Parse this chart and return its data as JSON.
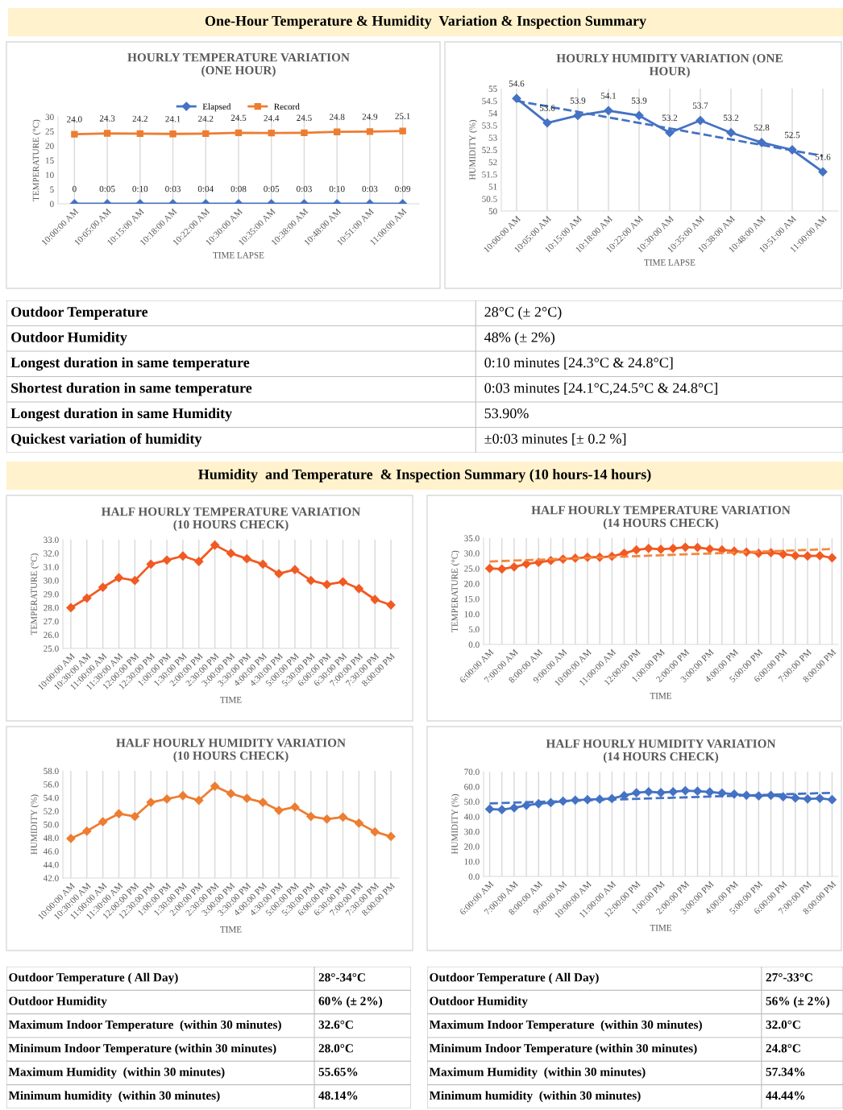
{
  "chart_data": [
    {
      "type": "other",
      "title": "One-Hour Temperature & Humidity  Variation & Inspection Summary"
    },
    {
      "type": "line",
      "title": "HOURLY TEMPERATURE VARIATION\n(ONE HOUR)",
      "xlabel": "TIME LAPSE",
      "ylabel": "TEMPERATURE (°C)",
      "categories": [
        "10:00:00 AM",
        "10:05:00 AM",
        "10:15:00 AM",
        "10:18:00 AM",
        "10:22:00 AM",
        "10:30:00 AM",
        "10:35:00 AM",
        "10:38:00 AM",
        "10:48:00 AM",
        "10:51:00 AM",
        "11:00:00 AM"
      ],
      "ylim": [
        0,
        30
      ],
      "yticks": [
        0,
        5,
        10,
        15,
        20,
        25,
        30
      ],
      "grid": "x",
      "legend": "top",
      "annotations": [
        {
          "text": "0:05",
          "x": "10:05:00 AM",
          "y": 0
        },
        {
          "text": "0:10",
          "x": "10:15:00 AM",
          "y": 0
        },
        {
          "text": "0:03",
          "x": "10:18:00 AM",
          "y": 0
        },
        {
          "text": "0:04",
          "x": "10:22:00 AM",
          "y": 0
        },
        {
          "text": "0:08",
          "x": "10:30:00 AM",
          "y": 0
        },
        {
          "text": "0:05",
          "x": "10:35:00 AM",
          "y": 0
        },
        {
          "text": "0:03",
          "x": "10:38:00 AM",
          "y": 0
        },
        {
          "text": "0:10",
          "x": "10:48:00 AM",
          "y": 0
        },
        {
          "text": "0:03",
          "x": "10:51:00 AM",
          "y": 0
        },
        {
          "text": "0:09",
          "x": "11:00:00 AM",
          "y": 0
        }
      ],
      "series": [
        {
          "name": "Elapsed",
          "color": "#4472c4",
          "marker": "diamond",
          "values": [
            0,
            0,
            0,
            0,
            0,
            0,
            0,
            0,
            0,
            0,
            0
          ],
          "value_labels": [
            "0",
            null,
            null,
            null,
            null,
            null,
            null,
            null,
            null,
            null,
            null
          ]
        },
        {
          "name": "Record",
          "color": "#ed7d31",
          "marker": "square",
          "values": [
            24.0,
            24.3,
            24.2,
            24.1,
            24.2,
            24.5,
            24.4,
            24.5,
            24.8,
            24.9,
            25.1
          ],
          "value_labels": [
            "24.0",
            "24.3",
            "24.2",
            "24.1",
            "24.2",
            "24.5",
            "24.4",
            "24.5",
            "24.8",
            "24.9",
            "25.1"
          ]
        }
      ]
    },
    {
      "type": "line",
      "title": "HOURLY HUMIDITY VARIATION (ONE\nHOUR)",
      "xlabel": "TIME LAPSE",
      "ylabel": "HUMIDITY (%)",
      "categories": [
        "10:00:00 AM",
        "10:05:00 AM",
        "10:15:00 AM",
        "10:18:00 AM",
        "10:22:00 AM",
        "10:30:00 AM",
        "10:35:00 AM",
        "10:38:00 AM",
        "10:48:00 AM",
        "10:51:00 AM",
        "11:00:00 AM"
      ],
      "ylim": [
        50,
        55
      ],
      "yticks": [
        50,
        50.5,
        51,
        51.5,
        52,
        52.5,
        53,
        53.5,
        54,
        54.5,
        55
      ],
      "grid": "x",
      "marker": "diamond",
      "series": [
        {
          "color": "#4472c4",
          "values": [
            54.6,
            53.6,
            53.9,
            54.1,
            53.9,
            53.2,
            53.7,
            53.2,
            52.8,
            52.5,
            51.6
          ],
          "value_labels": [
            "54.6",
            "53.6",
            "53.9",
            "54.1",
            "53.9",
            "53.2",
            "53.7",
            "53.2",
            "52.8",
            "52.5",
            "51.6"
          ]
        },
        {
          "type": "line",
          "color": "#4472c4",
          "marker": "none",
          "line_style": "dashed",
          "x": [
            "10:00:00 AM",
            "11:00:00 AM"
          ],
          "values": [
            54.5,
            52.25
          ]
        }
      ]
    },
    {
      "type": "other",
      "annotations": [
        "Outdoor Temperature",
        "28°C (± 2°C)",
        "Outdoor Humidity",
        "48% (± 2%)",
        "Longest duration in same temperature",
        "0:10 minutes [24.3°C & 24.8°C]",
        "Shortest duration in same temperature",
        "0:03 minutes [24.1°C,24.5°C & 24.8°C]",
        "Longest duration in same Humidity",
        "53.90%",
        "Quickest variation of humidity",
        "±0:03 minutes [± 0.2 %]"
      ]
    },
    {
      "type": "other",
      "title": "Humidity  and Temperature  & Inspection Summary (10 hours-14 hours)"
    },
    {
      "type": "line",
      "title": "HALF HOURLY TEMPERATURE VARIATION\n(10 HOURS CHECK)",
      "xlabel": "TIME",
      "ylabel": "TEMPERATURE (°C)",
      "categories": [
        "10:00:00 AM",
        "10:30:00 AM",
        "11:00:00 AM",
        "11:30:00 AM",
        "12:00:00 PM",
        "12:30:00 PM",
        "1:00:00 PM",
        "1:30:00 PM",
        "2:00:00 PM",
        "2:30:00 PM",
        "3:00:00 PM",
        "3:30:00 PM",
        "4:00:00 PM",
        "4:30:00 PM",
        "5:00:00 PM",
        "5:30:00 PM",
        "6:00:00 PM",
        "6:30:00 PM",
        "7:00:00 PM",
        "7:30:00 PM",
        "8:00:00 PM"
      ],
      "ylim": [
        25,
        33
      ],
      "yticks": [
        {
          "value": 25,
          "label": "25.0"
        },
        {
          "value": 26,
          "label": "26.0"
        },
        {
          "value": 27,
          "label": "27.0"
        },
        {
          "value": 28,
          "label": "28.0"
        },
        {
          "value": 29,
          "label": "29.0"
        },
        {
          "value": 30,
          "label": "30.0"
        },
        {
          "value": 31,
          "label": "31.0"
        },
        {
          "value": 32,
          "label": "32.0"
        },
        {
          "value": 33,
          "label": "33.0"
        }
      ],
      "grid": "x",
      "marker": "diamond",
      "series": [
        {
          "color": "#f15a22",
          "values": [
            28.0,
            28.7,
            29.5,
            30.2,
            30.0,
            31.2,
            31.5,
            31.8,
            31.4,
            32.6,
            32.0,
            31.6,
            31.2,
            30.5,
            30.8,
            30.0,
            29.7,
            29.9,
            29.4,
            28.6,
            28.2
          ]
        }
      ]
    },
    {
      "type": "line",
      "title": "HALF HOURLY TEMPERATURE VARIATION\n(14 HOURS CHECK)",
      "xlabel": "TIME",
      "ylabel": "TEMPERATURE (°C)",
      "categories": [
        "6:00:00 AM",
        null,
        "7:00:00 AM",
        null,
        "8:00:00 AM",
        null,
        "9:00:00 AM",
        null,
        "10:00:00 AM",
        null,
        "11:00:00 AM",
        null,
        "12:00:00 PM",
        null,
        "1:00:00 PM",
        null,
        "2:00:00 PM",
        null,
        "3:00:00 PM",
        null,
        "4:00:00 PM",
        null,
        "5:00:00 PM",
        null,
        "6:00:00 PM",
        null,
        "7:00:00 PM",
        null,
        "8:00:00 PM"
      ],
      "ylim": [
        0,
        35
      ],
      "yticks": [
        {
          "value": 0,
          "label": "0.0"
        },
        {
          "value": 5,
          "label": "5.0"
        },
        {
          "value": 10,
          "label": "10.0"
        },
        {
          "value": 15,
          "label": "15.0"
        },
        {
          "value": 20,
          "label": "20.0"
        },
        {
          "value": 25,
          "label": "25.0"
        },
        {
          "value": 30,
          "label": "30.0"
        },
        {
          "value": 35,
          "label": "35.0"
        }
      ],
      "grid": "x",
      "marker": "diamond",
      "series": [
        {
          "color": "#f15a22",
          "values": [
            25.0,
            24.8,
            25.5,
            26.5,
            27.0,
            27.6,
            28.1,
            28.4,
            28.7,
            28.7,
            29.0,
            30.0,
            31.1,
            31.6,
            31.3,
            31.6,
            32.0,
            31.9,
            31.4,
            31.1,
            30.7,
            30.4,
            30.0,
            30.2,
            29.7,
            29.2,
            29.1,
            29.2,
            28.5
          ]
        },
        {
          "type": "line",
          "color": "#f4873e",
          "marker": "none",
          "line_style": "dashed",
          "x": [
            "6:00:00 AM",
            "8:00:00 PM"
          ],
          "values": [
            27.3,
            31.4
          ]
        }
      ]
    },
    {
      "type": "line",
      "title": "HALF HOURLY HUMIDITY VARIATION\n(10 HOURS CHECK)",
      "xlabel": "TIME",
      "ylabel": "HUMIDITY (%)",
      "categories": [
        "10:00:00 AM",
        "10:30:00 AM",
        "11:00:00 AM",
        "11:30:00 AM",
        "12:00:00 PM",
        "12:30:00 PM",
        "1:00:00 PM",
        "1:30:00 PM",
        "2:00:00 PM",
        "2:30:00 PM",
        "3:00:00 PM",
        "3:30:00 PM",
        "4:00:00 PM",
        "4:30:00 PM",
        "5:00:00 PM",
        "5:30:00 PM",
        "6:00:00 PM",
        "6:30:00 PM",
        "7:00:00 PM",
        "7:30:00 PM",
        "8:00:00 PM"
      ],
      "ylim": [
        42,
        58
      ],
      "yticks": [
        {
          "value": 42,
          "label": "42.0"
        },
        {
          "value": 44,
          "label": "44.0"
        },
        {
          "value": 46,
          "label": "46.0"
        },
        {
          "value": 48,
          "label": "48.0"
        },
        {
          "value": 50,
          "label": "50.0"
        },
        {
          "value": 52,
          "label": "52.0"
        },
        {
          "value": 54,
          "label": "54.0"
        },
        {
          "value": 56,
          "label": "56.0"
        },
        {
          "value": 58,
          "label": "58.0"
        }
      ],
      "grid": "x",
      "marker": "diamond",
      "series": [
        {
          "color": "#ed7d31",
          "values": [
            47.9,
            49.0,
            50.4,
            51.6,
            51.2,
            53.3,
            53.8,
            54.3,
            53.6,
            55.7,
            54.6,
            53.9,
            53.3,
            52.1,
            52.6,
            51.2,
            50.8,
            51.1,
            50.2,
            48.9,
            48.2
          ]
        }
      ]
    },
    {
      "type": "line",
      "title": "HALF HOURLY HUMIDITY VARIATION\n(14 HOURS CHECK)",
      "xlabel": "TIME",
      "ylabel": "HUMIDITY (%)",
      "categories": [
        "6:00:00 AM",
        null,
        "7:00:00 AM",
        null,
        "8:00:00 AM",
        null,
        "9:00:00 AM",
        null,
        "10:00:00 AM",
        null,
        "11:00:00 AM",
        null,
        "12:00:00 PM",
        null,
        "1:00:00 PM",
        null,
        "2:00:00 PM",
        null,
        "3:00:00 PM",
        null,
        "4:00:00 PM",
        null,
        "5:00:00 PM",
        null,
        "6:00:00 PM",
        null,
        "7:00:00 PM",
        null,
        "8:00:00 PM"
      ],
      "ylim": [
        0,
        70
      ],
      "yticks": [
        {
          "value": 0,
          "label": "0.0"
        },
        {
          "value": 10,
          "label": "10.0"
        },
        {
          "value": 20,
          "label": "20.0"
        },
        {
          "value": 30,
          "label": "30.0"
        },
        {
          "value": 40,
          "label": "40.0"
        },
        {
          "value": 50,
          "label": "50.0"
        },
        {
          "value": 60,
          "label": "60.0"
        },
        {
          "value": 70,
          "label": "70.0"
        }
      ],
      "grid": "x",
      "marker": "diamond",
      "series": [
        {
          "color": "#4472c4",
          "values": [
            45.0,
            44.6,
            45.8,
            47.5,
            48.6,
            49.3,
            50.3,
            51.0,
            51.3,
            51.6,
            52.0,
            54.0,
            55.9,
            56.6,
            56.0,
            56.6,
            57.3,
            57.0,
            56.4,
            55.7,
            55.0,
            54.2,
            53.8,
            54.2,
            53.2,
            52.4,
            51.8,
            52.2,
            51.3
          ]
        },
        {
          "type": "line",
          "color": "#4472c4",
          "marker": "none",
          "line_style": "dashed",
          "x": [
            "6:00:00 AM",
            "8:00:00 PM"
          ],
          "values": [
            48.8,
            55.9
          ]
        }
      ]
    },
    {
      "type": "other",
      "annotations": [
        "Outdoor Temperature ( All Day)",
        "28°-34°C",
        "Outdoor Humidity",
        "60% (± 2%)",
        "Maximum Indoor Temperature  (within 30 minutes)",
        "32.6°C",
        "Minimum Indoor Temperature (within 30 minutes)",
        "28.0°C",
        "Maximum Humidity  (within 30 minutes)",
        "55.65%",
        "Minimum humidity  (within 30 minutes)",
        "48.14%"
      ]
    },
    {
      "type": "other",
      "annotations": [
        "Outdoor Temperature ( All Day)",
        "27°-33°C",
        "Outdoor Humidity",
        "56% (± 2%)",
        "Maximum Indoor Temperature  (within 30 minutes)",
        "32.0°C",
        "Minimum Indoor Temperature (within 30 minutes)",
        "24.8°C",
        "Maximum Humidity  (within 30 minutes)",
        "57.34%",
        "Minimum humidity  (within 30 minutes)",
        "44.44%"
      ]
    }
  ]
}
